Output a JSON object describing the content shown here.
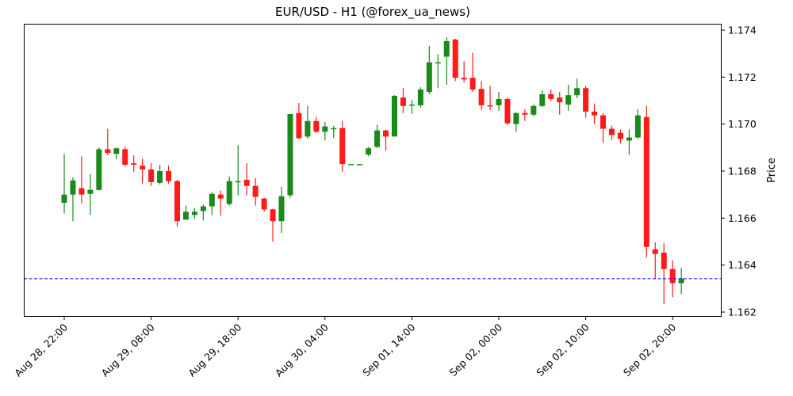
{
  "chart_data": {
    "type": "candlestick",
    "title": "EUR/USD - H1 (@forex_ua_news)",
    "xlabel": "",
    "ylabel": "Price",
    "ylim": [
      1.1618,
      1.1743
    ],
    "y_ticks": [
      "1.162",
      "1.164",
      "1.166",
      "1.168",
      "1.170",
      "1.172",
      "1.174"
    ],
    "x_tick_labels": [
      "Aug 28, 22:00",
      "Aug 29, 08:00",
      "Aug 29, 18:00",
      "Aug 30, 04:00",
      "Sep 01, 14:00",
      "Sep 02, 00:00",
      "Sep 02, 10:00",
      "Sep 02, 20:00"
    ],
    "x_tick_index": [
      0,
      10,
      20,
      30,
      40,
      50,
      60,
      70
    ],
    "grid": false,
    "legend": null,
    "colors": {
      "up": "#1a8a1a",
      "down": "#ff1a1a",
      "reference_line": "#0000ff"
    },
    "reference_line": {
      "value": 1.16342,
      "style": "dashed",
      "color": "#0000ff"
    },
    "candles": [
      {
        "o": 1.16665,
        "h": 1.16873,
        "l": 1.1662,
        "c": 1.167
      },
      {
        "o": 1.167,
        "h": 1.16773,
        "l": 1.16587,
        "c": 1.1676
      },
      {
        "o": 1.16727,
        "h": 1.16863,
        "l": 1.16663,
        "c": 1.167
      },
      {
        "o": 1.16703,
        "h": 1.16787,
        "l": 1.16613,
        "c": 1.1672
      },
      {
        "o": 1.1672,
        "h": 1.169,
        "l": 1.16717,
        "c": 1.16893
      },
      {
        "o": 1.16893,
        "h": 1.1698,
        "l": 1.16867,
        "c": 1.16877
      },
      {
        "o": 1.16873,
        "h": 1.169,
        "l": 1.1685,
        "c": 1.16897
      },
      {
        "o": 1.16893,
        "h": 1.16903,
        "l": 1.1682,
        "c": 1.16827
      },
      {
        "o": 1.16833,
        "h": 1.16867,
        "l": 1.16797,
        "c": 1.16827
      },
      {
        "o": 1.16823,
        "h": 1.16853,
        "l": 1.16747,
        "c": 1.16807
      },
      {
        "o": 1.16807,
        "h": 1.16833,
        "l": 1.16737,
        "c": 1.16753
      },
      {
        "o": 1.1675,
        "h": 1.16827,
        "l": 1.16743,
        "c": 1.168
      },
      {
        "o": 1.168,
        "h": 1.16823,
        "l": 1.16747,
        "c": 1.16757
      },
      {
        "o": 1.16757,
        "h": 1.16763,
        "l": 1.16563,
        "c": 1.16587
      },
      {
        "o": 1.16593,
        "h": 1.16653,
        "l": 1.16593,
        "c": 1.16627
      },
      {
        "o": 1.16613,
        "h": 1.16643,
        "l": 1.16597,
        "c": 1.16627
      },
      {
        "o": 1.1663,
        "h": 1.16657,
        "l": 1.1659,
        "c": 1.1665
      },
      {
        "o": 1.1665,
        "h": 1.1671,
        "l": 1.16613,
        "c": 1.16703
      },
      {
        "o": 1.167,
        "h": 1.16717,
        "l": 1.1661,
        "c": 1.16683
      },
      {
        "o": 1.1666,
        "h": 1.16777,
        "l": 1.16653,
        "c": 1.16757
      },
      {
        "o": 1.16757,
        "h": 1.1691,
        "l": 1.16697,
        "c": 1.16757
      },
      {
        "o": 1.16763,
        "h": 1.16833,
        "l": 1.16697,
        "c": 1.16737
      },
      {
        "o": 1.16737,
        "h": 1.1677,
        "l": 1.16653,
        "c": 1.1669
      },
      {
        "o": 1.16683,
        "h": 1.16687,
        "l": 1.16627,
        "c": 1.16637
      },
      {
        "o": 1.16637,
        "h": 1.1664,
        "l": 1.165,
        "c": 1.16587
      },
      {
        "o": 1.16587,
        "h": 1.16733,
        "l": 1.16537,
        "c": 1.16693
      },
      {
        "o": 1.16697,
        "h": 1.17043,
        "l": 1.16687,
        "c": 1.17043
      },
      {
        "o": 1.17047,
        "h": 1.1709,
        "l": 1.16937,
        "c": 1.1694
      },
      {
        "o": 1.16947,
        "h": 1.17077,
        "l": 1.16937,
        "c": 1.17013
      },
      {
        "o": 1.17013,
        "h": 1.1703,
        "l": 1.16963,
        "c": 1.16967
      },
      {
        "o": 1.16967,
        "h": 1.1701,
        "l": 1.1693,
        "c": 1.1699
      },
      {
        "o": 1.16983,
        "h": 1.16993,
        "l": 1.1694,
        "c": 1.16983
      },
      {
        "o": 1.16983,
        "h": 1.17013,
        "l": 1.16797,
        "c": 1.1683
      },
      {
        "o": 1.1683,
        "h": 1.1683,
        "l": 1.1683,
        "c": 1.1683
      },
      {
        "o": 1.1683,
        "h": 1.1683,
        "l": 1.1683,
        "c": 1.1683
      },
      {
        "o": 1.1687,
        "h": 1.16903,
        "l": 1.16863,
        "c": 1.16897
      },
      {
        "o": 1.16903,
        "h": 1.16997,
        "l": 1.16897,
        "c": 1.16973
      },
      {
        "o": 1.16973,
        "h": 1.16977,
        "l": 1.16887,
        "c": 1.16947
      },
      {
        "o": 1.16947,
        "h": 1.17123,
        "l": 1.16947,
        "c": 1.1712
      },
      {
        "o": 1.17113,
        "h": 1.17153,
        "l": 1.17047,
        "c": 1.17077
      },
      {
        "o": 1.1708,
        "h": 1.17103,
        "l": 1.17043,
        "c": 1.17083
      },
      {
        "o": 1.1708,
        "h": 1.17157,
        "l": 1.1707,
        "c": 1.17147
      },
      {
        "o": 1.17137,
        "h": 1.17333,
        "l": 1.17127,
        "c": 1.17263
      },
      {
        "o": 1.1726,
        "h": 1.17297,
        "l": 1.17153,
        "c": 1.17263
      },
      {
        "o": 1.17287,
        "h": 1.1737,
        "l": 1.17167,
        "c": 1.17353
      },
      {
        "o": 1.1736,
        "h": 1.17363,
        "l": 1.17183,
        "c": 1.17197
      },
      {
        "o": 1.17197,
        "h": 1.17267,
        "l": 1.17177,
        "c": 1.1719
      },
      {
        "o": 1.17197,
        "h": 1.17303,
        "l": 1.17137,
        "c": 1.17147
      },
      {
        "o": 1.1715,
        "h": 1.17183,
        "l": 1.1706,
        "c": 1.1708
      },
      {
        "o": 1.1708,
        "h": 1.17163,
        "l": 1.1706,
        "c": 1.17077
      },
      {
        "o": 1.1708,
        "h": 1.17137,
        "l": 1.17057,
        "c": 1.17107
      },
      {
        "o": 1.17107,
        "h": 1.17113,
        "l": 1.16997,
        "c": 1.17003
      },
      {
        "o": 1.17,
        "h": 1.1705,
        "l": 1.16967,
        "c": 1.17047
      },
      {
        "o": 1.17047,
        "h": 1.17063,
        "l": 1.17013,
        "c": 1.1704
      },
      {
        "o": 1.1704,
        "h": 1.17083,
        "l": 1.17033,
        "c": 1.17077
      },
      {
        "o": 1.17077,
        "h": 1.17143,
        "l": 1.17073,
        "c": 1.17127
      },
      {
        "o": 1.17127,
        "h": 1.17147,
        "l": 1.17097,
        "c": 1.17107
      },
      {
        "o": 1.17113,
        "h": 1.17137,
        "l": 1.1704,
        "c": 1.17093
      },
      {
        "o": 1.17083,
        "h": 1.17167,
        "l": 1.17057,
        "c": 1.17123
      },
      {
        "o": 1.17123,
        "h": 1.17193,
        "l": 1.1711,
        "c": 1.17153
      },
      {
        "o": 1.17153,
        "h": 1.17163,
        "l": 1.17027,
        "c": 1.17053
      },
      {
        "o": 1.17053,
        "h": 1.17087,
        "l": 1.17,
        "c": 1.17037
      },
      {
        "o": 1.17037,
        "h": 1.17047,
        "l": 1.1692,
        "c": 1.1698
      },
      {
        "o": 1.1698,
        "h": 1.16993,
        "l": 1.16933,
        "c": 1.16953
      },
      {
        "o": 1.16963,
        "h": 1.16977,
        "l": 1.16917,
        "c": 1.16937
      },
      {
        "o": 1.1693,
        "h": 1.16977,
        "l": 1.1687,
        "c": 1.16943
      },
      {
        "o": 1.16943,
        "h": 1.17063,
        "l": 1.16937,
        "c": 1.17037
      },
      {
        "o": 1.1703,
        "h": 1.17077,
        "l": 1.16433,
        "c": 1.16477
      },
      {
        "o": 1.16467,
        "h": 1.16497,
        "l": 1.1634,
        "c": 1.16447
      },
      {
        "o": 1.16453,
        "h": 1.16493,
        "l": 1.16233,
        "c": 1.16383
      },
      {
        "o": 1.16383,
        "h": 1.1642,
        "l": 1.16263,
        "c": 1.16323
      },
      {
        "o": 1.16323,
        "h": 1.16387,
        "l": 1.16277,
        "c": 1.16343
      }
    ]
  },
  "axes": {
    "price_label": "Price"
  }
}
